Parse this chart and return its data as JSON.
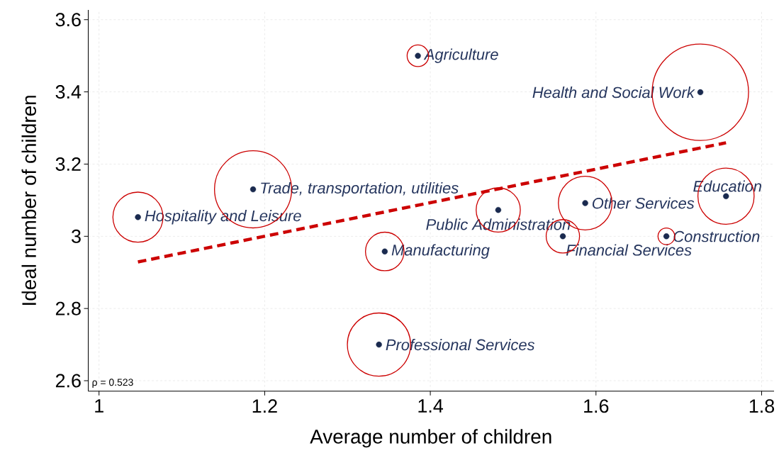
{
  "chart_data": {
    "type": "bubble",
    "xlabel": "Average number of children",
    "ylabel": "Ideal number of children",
    "xlim": [
      0.987,
      1.815
    ],
    "ylim": [
      2.571,
      3.627
    ],
    "xticks": [
      1,
      1.2,
      1.4,
      1.6,
      1.8
    ],
    "yticks": [
      2.6,
      2.8,
      3,
      3.2,
      3.4,
      3.6
    ],
    "grid": true,
    "series": [
      {
        "color": "#cc0000",
        "x": [
          1.385,
          1.726,
          1.186,
          1.047,
          1.482,
          1.587,
          1.56,
          1.685,
          1.757,
          1.345,
          1.338
        ],
        "values": [
          3.5,
          3.399,
          3.13,
          3.053,
          3.073,
          3.092,
          3.0,
          3.0,
          3.111,
          2.958,
          2.7
        ],
        "sizes": [
          0.05,
          1,
          0.64,
          0.27,
          0.21,
          0.31,
          0.12,
          0.03,
          0.34,
          0.16,
          0.43
        ]
      },
      {
        "type": "scatter",
        "color": "#1a2a4f",
        "marker": "circle",
        "x": [
          1.385,
          1.726,
          1.186,
          1.047,
          1.482,
          1.587,
          1.56,
          1.685,
          1.757,
          1.345,
          1.338
        ],
        "values": [
          3.5,
          3.399,
          3.13,
          3.053,
          3.073,
          3.092,
          3.0,
          3.0,
          3.111,
          2.958,
          2.7
        ]
      },
      {
        "type": "line",
        "color": "#cc0000",
        "line_style": "dashed",
        "x": [
          1.047,
          1.757
        ],
        "values": [
          2.929,
          3.259
        ]
      }
    ],
    "annotations": [
      {
        "text": "Agriculture",
        "x": 1.385,
        "y": 3.5
      },
      {
        "text": "Health and Social Work",
        "x": 1.726,
        "y": 3.399
      },
      {
        "text": "Trade, transportation, utilities",
        "x": 1.186,
        "y": 3.13
      },
      {
        "text": "Hospitality and Leisure",
        "x": 1.047,
        "y": 3.053
      },
      {
        "text": "Public Administration",
        "x": 1.482,
        "y": 3.073
      },
      {
        "text": "Other Services",
        "x": 1.587,
        "y": 3.092
      },
      {
        "text": "Financial Services",
        "x": 1.56,
        "y": 3.0
      },
      {
        "text": "Construction",
        "x": 1.685,
        "y": 3.0
      },
      {
        "text": "Education",
        "x": 1.757,
        "y": 3.111
      },
      {
        "text": "Manufacturing",
        "x": 1.345,
        "y": 2.958
      },
      {
        "text": "Professional Services",
        "x": 1.338,
        "y": 2.7
      },
      "ρ = 0.523"
    ]
  }
}
